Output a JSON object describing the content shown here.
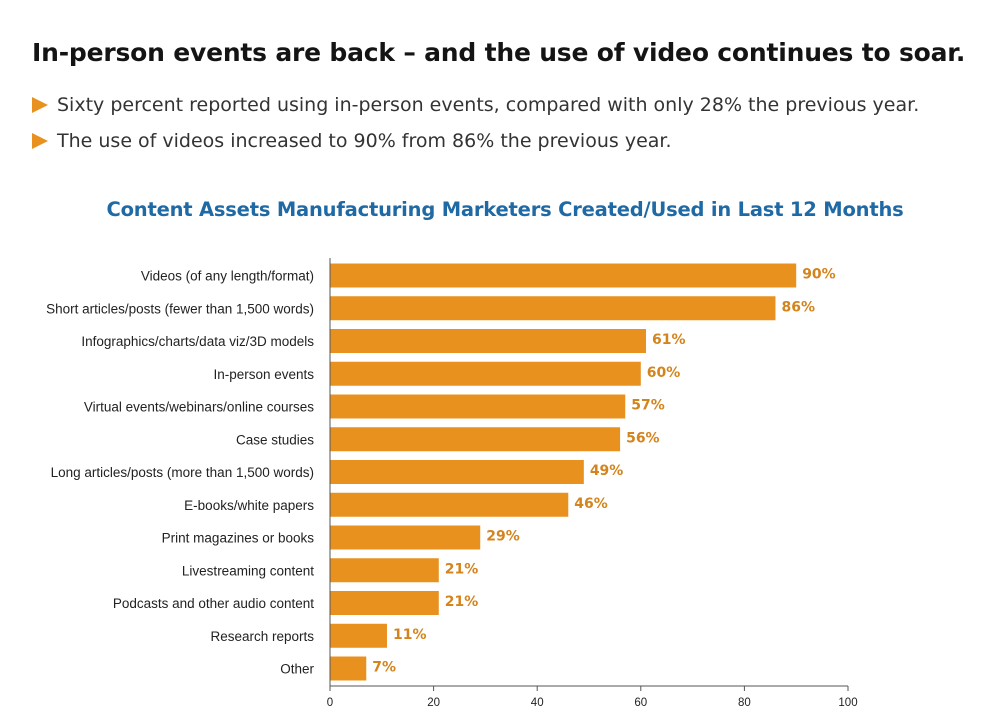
{
  "headline": "In-person events are back – and the use of video continues to soar.",
  "bullets": [
    "Sixty percent reported using in-person events, compared with only 28% the previous year.",
    "The use of videos increased to 90% from 86% the previous year."
  ],
  "colors": {
    "bar": "#e8911f",
    "label": "#d4841c",
    "title": "#1f6aa5",
    "bullet": "#e8911f"
  },
  "chart_data": {
    "type": "bar",
    "orientation": "horizontal",
    "title": "Content Assets Manufacturing Marketers Created/Used in Last 12 Months",
    "categories": [
      "Videos (of any length/format)",
      "Short articles/posts (fewer than 1,500 words)",
      "Infographics/charts/data viz/3D models",
      "In-person events",
      "Virtual events/webinars/online courses",
      "Case studies",
      "Long articles/posts (more than 1,500 words)",
      "E-books/white papers",
      "Print magazines or books",
      "Livestreaming content",
      "Podcasts and other audio content",
      "Research reports",
      "Other"
    ],
    "values": [
      90,
      86,
      61,
      60,
      57,
      56,
      49,
      46,
      29,
      21,
      21,
      11,
      7
    ],
    "value_labels": [
      "90%",
      "86%",
      "61%",
      "60%",
      "57%",
      "56%",
      "49%",
      "46%",
      "29%",
      "21%",
      "21%",
      "11%",
      "7%"
    ],
    "xlim": [
      0,
      100
    ],
    "xticks": [
      0,
      20,
      40,
      60,
      80,
      100
    ],
    "grid": false
  }
}
